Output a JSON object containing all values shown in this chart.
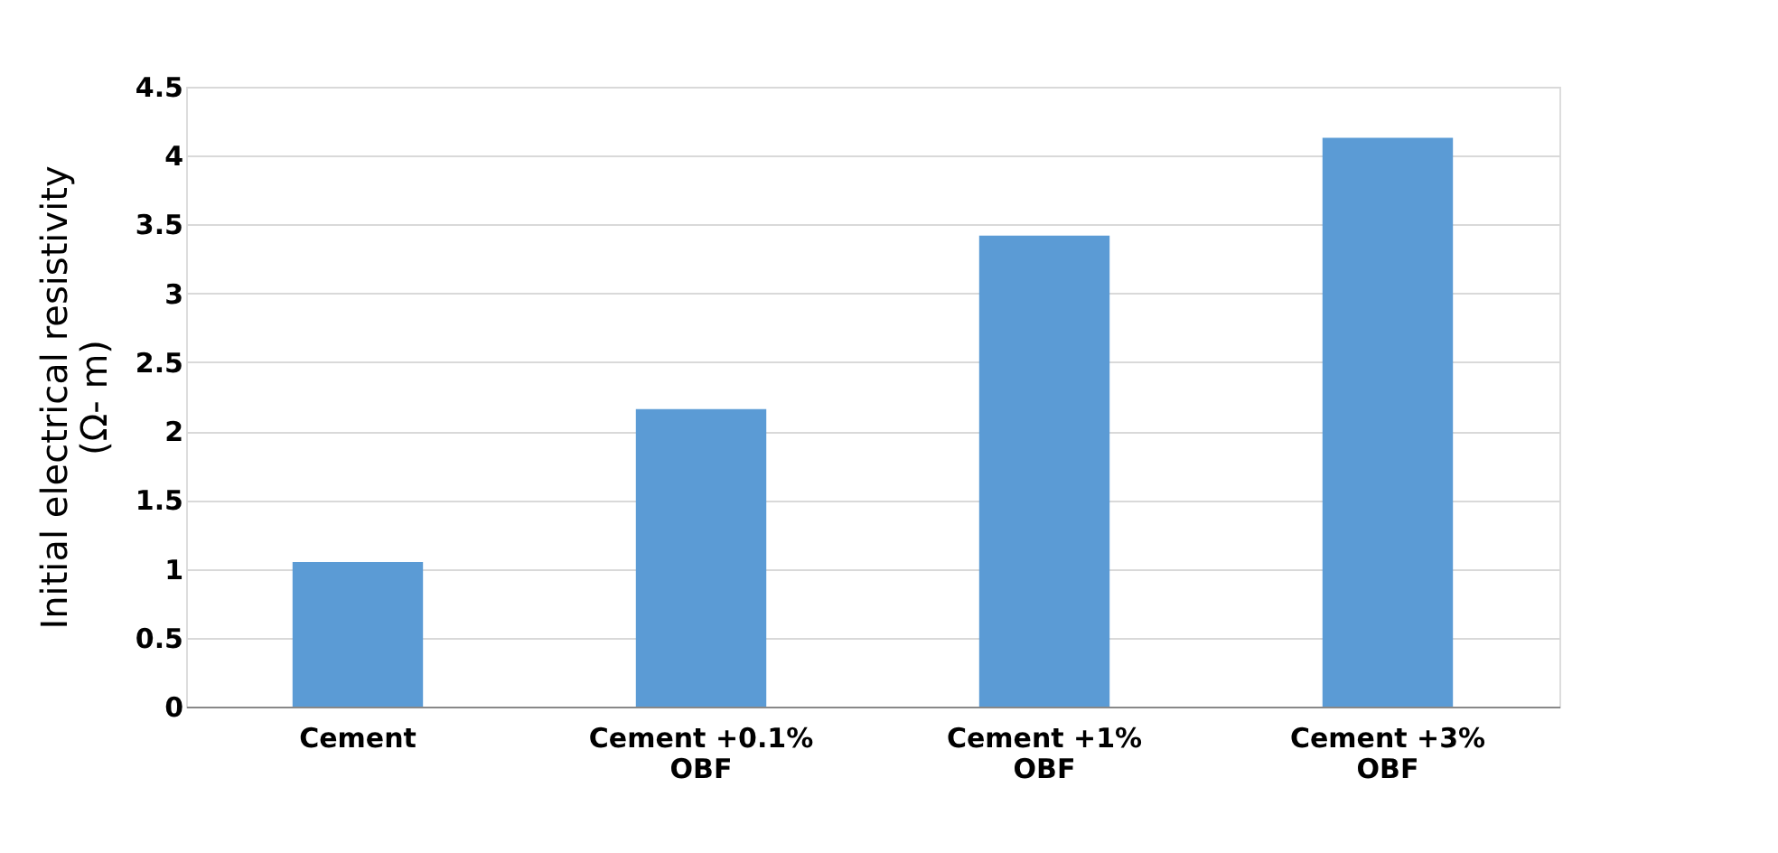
{
  "chart_data": {
    "type": "bar",
    "ylabel": "Initial electrical resistivity\n(Ω- m)",
    "categories": [
      "Cement",
      "Cement +0.1%\nOBF",
      "Cement +1%\nOBF",
      "Cement +3%\nOBF"
    ],
    "values": [
      1.05,
      2.16,
      3.42,
      4.13
    ],
    "color": "#5b9bd5",
    "ylim": [
      0,
      4.5
    ],
    "yticks": [
      0,
      0.5,
      1,
      1.5,
      2,
      2.5,
      3,
      3.5,
      4,
      4.5
    ],
    "grid": "y"
  }
}
